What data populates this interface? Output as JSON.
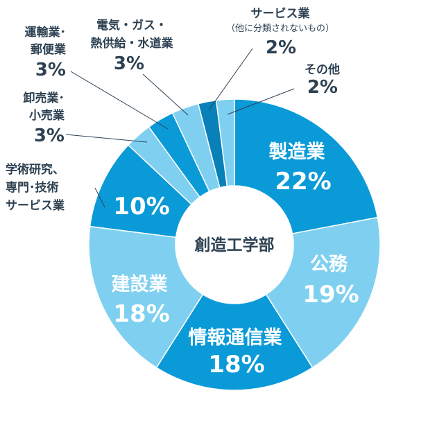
{
  "chart_data": {
    "type": "pie",
    "center_label": "創造工学部",
    "slices": [
      {
        "name": "製造業",
        "value": 22,
        "pct_label": "22%",
        "color": "#0a9ad8"
      },
      {
        "name": "公務",
        "value": 19,
        "pct_label": "19%",
        "color": "#7fd0f0"
      },
      {
        "name": "情報通信業",
        "value": 18,
        "pct_label": "18%",
        "color": "#0a9ad8"
      },
      {
        "name": "建設業",
        "value": 18,
        "pct_label": "18%",
        "color": "#7fd0f0"
      },
      {
        "name": "学術研究、専門･技術サービス業",
        "line1": "学術研究、",
        "line2": "専門･技術",
        "line3": "サービス業",
        "value": 10,
        "pct_label": "10%",
        "color": "#0a9ad8"
      },
      {
        "name": "卸売業･小売業",
        "line1": "卸売業･",
        "line2": "小売業",
        "value": 3,
        "pct_label": "3%",
        "color": "#7fd0f0"
      },
      {
        "name": "運輸業･郵便業",
        "line1": "運輸業･",
        "line2": "郵便業",
        "value": 3,
        "pct_label": "3%",
        "color": "#0a9ad8"
      },
      {
        "name": "電気・ガス・熱供給・水道業",
        "line1": "電気・ガス・",
        "line2": "熱供給・水道業",
        "value": 3,
        "pct_label": "3%",
        "color": "#7fd0f0"
      },
      {
        "name": "サービス業（他に分類されないもの）",
        "line1": "サービス業",
        "line2": "（他に分類されないもの）",
        "value": 2,
        "pct_label": "2%",
        "color": "#0880b8"
      },
      {
        "name": "その他",
        "line1": "その他",
        "value": 2,
        "pct_label": "2%",
        "color": "#7fd0f0"
      }
    ]
  }
}
